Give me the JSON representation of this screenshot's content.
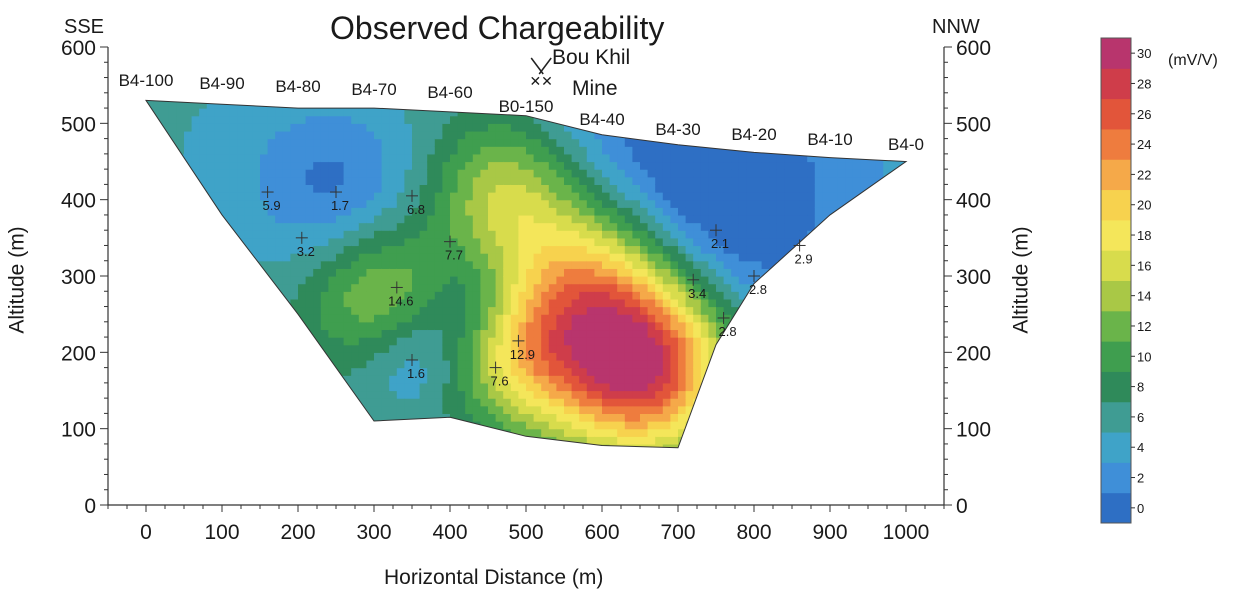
{
  "chart_data": {
    "type": "heatmap",
    "title": "Observed Chargeability",
    "xlabel": "Horizontal Distance (m)",
    "ylabel": "Altitude (m)",
    "ylabel_right": "Altitude (m)",
    "xlim": [
      -50,
      1050
    ],
    "ylim": [
      0,
      600
    ],
    "x_ticks": [
      0,
      100,
      200,
      300,
      400,
      500,
      600,
      700,
      800,
      900,
      1000
    ],
    "y_ticks": [
      0,
      100,
      200,
      300,
      400,
      500,
      600
    ],
    "direction_left": "SSE",
    "direction_right": "NNW",
    "site_label_1": "Bou Khil",
    "site_label_2": "Mine",
    "stations": [
      {
        "name": "B4-100",
        "x": 0
      },
      {
        "name": "B4-90",
        "x": 100
      },
      {
        "name": "B4-80",
        "x": 200
      },
      {
        "name": "B4-70",
        "x": 300
      },
      {
        "name": "B4-60",
        "x": 400
      },
      {
        "name": "B0-150",
        "x": 500
      },
      {
        "name": "B4-40",
        "x": 600
      },
      {
        "name": "B4-30",
        "x": 700
      },
      {
        "name": "B4-20",
        "x": 800
      },
      {
        "name": "B4-10",
        "x": 900
      },
      {
        "name": "B4-0",
        "x": 1000
      }
    ],
    "section_outline": [
      [
        0,
        530
      ],
      [
        100,
        525
      ],
      [
        200,
        520
      ],
      [
        300,
        520
      ],
      [
        400,
        515
      ],
      [
        500,
        510
      ],
      [
        600,
        485
      ],
      [
        700,
        472
      ],
      [
        800,
        462
      ],
      [
        900,
        455
      ],
      [
        1000,
        450
      ],
      [
        900,
        380
      ],
      [
        800,
        290
      ],
      [
        750,
        210
      ],
      [
        700,
        75
      ],
      [
        600,
        78
      ],
      [
        500,
        90
      ],
      [
        400,
        115
      ],
      [
        300,
        110
      ],
      [
        200,
        250
      ],
      [
        100,
        380
      ]
    ],
    "colorbar": {
      "unit": "(mV/V)",
      "min": 0,
      "max": 30,
      "ticks": [
        0,
        2,
        4,
        6,
        8,
        10,
        12,
        14,
        16,
        18,
        20,
        22,
        24,
        26,
        28,
        30
      ],
      "colors": [
        "#2e6fc4",
        "#3f8fd8",
        "#3fa3c8",
        "#3f9c93",
        "#2f8a5a",
        "#3f9e4f",
        "#6ab44a",
        "#a9c846",
        "#d8dc4c",
        "#f4e65a",
        "#f7d24e",
        "#f5a949",
        "#ee7c3e",
        "#e2553a",
        "#cf3d4a",
        "#b8356d"
      ]
    },
    "sources": [
      {
        "x": 590,
        "y": 270,
        "value": 27,
        "r": 150
      },
      {
        "x": 660,
        "y": 175,
        "value": 23,
        "r": 110
      },
      {
        "x": 310,
        "y": 270,
        "value": 15,
        "r": 95
      },
      {
        "x": 470,
        "y": 420,
        "value": 14,
        "r": 90
      },
      {
        "x": 490,
        "y": 190,
        "value": 12,
        "r": 80
      },
      {
        "x": 250,
        "y": 420,
        "value": 1.7,
        "r": 110
      },
      {
        "x": 350,
        "y": 200,
        "value": 1.6,
        "r": 75
      },
      {
        "x": 430,
        "y": 270,
        "value": 2,
        "r": 70
      },
      {
        "x": 720,
        "y": 330,
        "value": 1,
        "r": 130
      },
      {
        "x": 820,
        "y": 430,
        "value": 2.5,
        "r": 230
      },
      {
        "x": 640,
        "y": 450,
        "value": 2,
        "r": 140
      },
      {
        "x": 100,
        "y": 460,
        "value": 6,
        "r": 140
      }
    ],
    "background_value": 7,
    "point_labels": [
      {
        "text": "5.9",
        "x": 160,
        "y": 410
      },
      {
        "text": "1.7",
        "x": 250,
        "y": 410
      },
      {
        "text": "6.8",
        "x": 350,
        "y": 405
      },
      {
        "text": "3.2",
        "x": 205,
        "y": 350
      },
      {
        "text": "7.7",
        "x": 400,
        "y": 345
      },
      {
        "text": "2.1",
        "x": 750,
        "y": 360
      },
      {
        "text": "2.9",
        "x": 860,
        "y": 340
      },
      {
        "text": "2.8",
        "x": 800,
        "y": 300
      },
      {
        "text": "2.8",
        "x": 760,
        "y": 245
      },
      {
        "text": "12.9",
        "x": 490,
        "y": 215
      },
      {
        "text": "7.6",
        "x": 460,
        "y": 180
      },
      {
        "text": "1.6",
        "x": 350,
        "y": 190
      },
      {
        "text": "3.4",
        "x": 720,
        "y": 295
      },
      {
        "text": "14.6",
        "x": 330,
        "y": 285
      }
    ]
  }
}
